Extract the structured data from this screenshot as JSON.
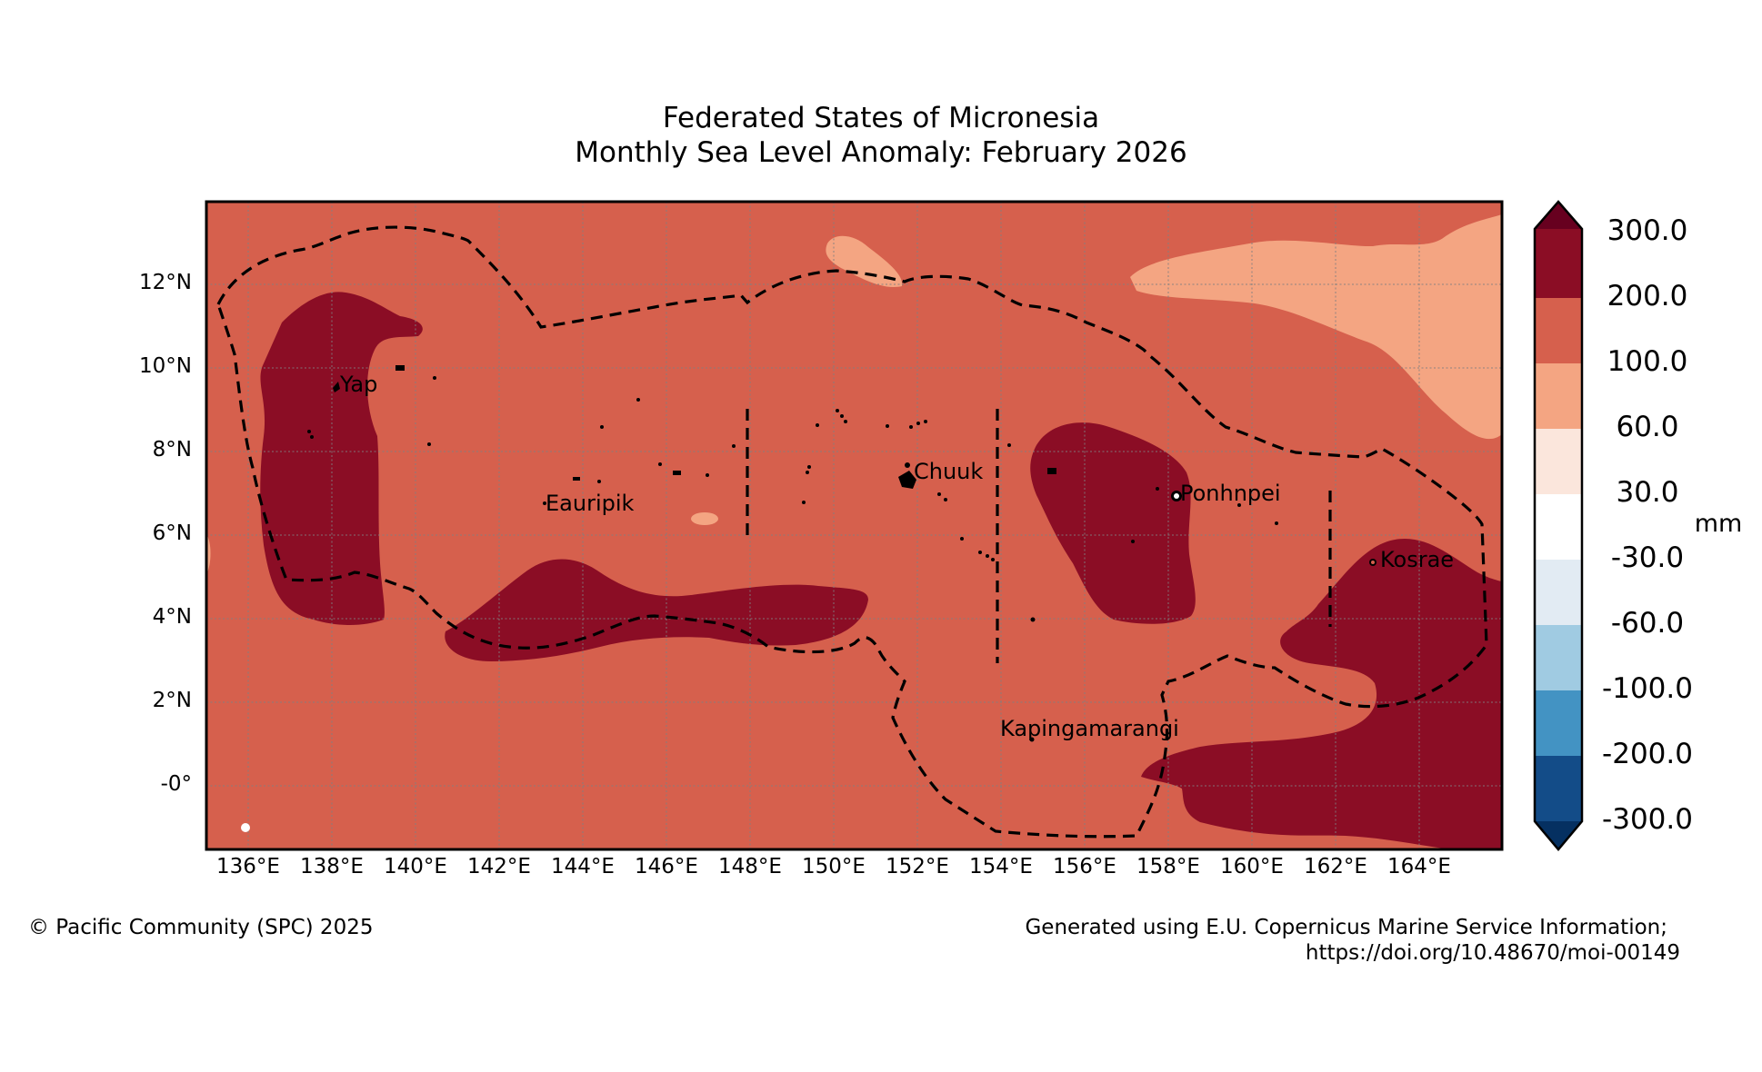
{
  "title": {
    "line1": "Federated States of Micronesia",
    "line2": "Monthly Sea Level Anomaly: February 2026"
  },
  "map": {
    "lat_ticks": [
      "12°N",
      "10°N",
      "8°N",
      "6°N",
      "4°N",
      "2°N",
      "-0°"
    ],
    "lon_ticks": [
      "136°E",
      "138°E",
      "140°E",
      "142°E",
      "144°E",
      "146°E",
      "148°E",
      "150°E",
      "152°E",
      "154°E",
      "156°E",
      "158°E",
      "160°E",
      "162°E",
      "164°E"
    ],
    "places": {
      "yap": "Yap",
      "eauripik": "Eauripik",
      "chuuk": "Chuuk",
      "ponhnpei": "Ponhnpei",
      "kosrae": "Kosrae",
      "kapingamarangi": "Kapingamarangi"
    },
    "colors": {
      "background_anomaly": "#d6604d",
      "high_anomaly": "#8b0d25",
      "low_anomaly": "#f4a582",
      "eez_line": "#000000",
      "gridline": "#808080"
    }
  },
  "colorbar": {
    "unit": "mm",
    "ticks": [
      "300.0",
      "200.0",
      "100.0",
      "60.0",
      "30.0",
      "-30.0",
      "-60.0",
      "-100.0",
      "-200.0",
      "-300.0"
    ],
    "colors": [
      "#67001f",
      "#8b0d25",
      "#d6604d",
      "#f4a582",
      "#fbe6dc",
      "#ffffff",
      "#e2ebf3",
      "#a0cbe2",
      "#4393c3",
      "#134c88",
      "#053061"
    ]
  },
  "footer": {
    "copyright": "© Pacific Community (SPC) 2025",
    "source_line1": "Generated using E.U. Copernicus Marine Service Information;",
    "source_line2": "https://doi.org/10.48670/moi-00149"
  }
}
